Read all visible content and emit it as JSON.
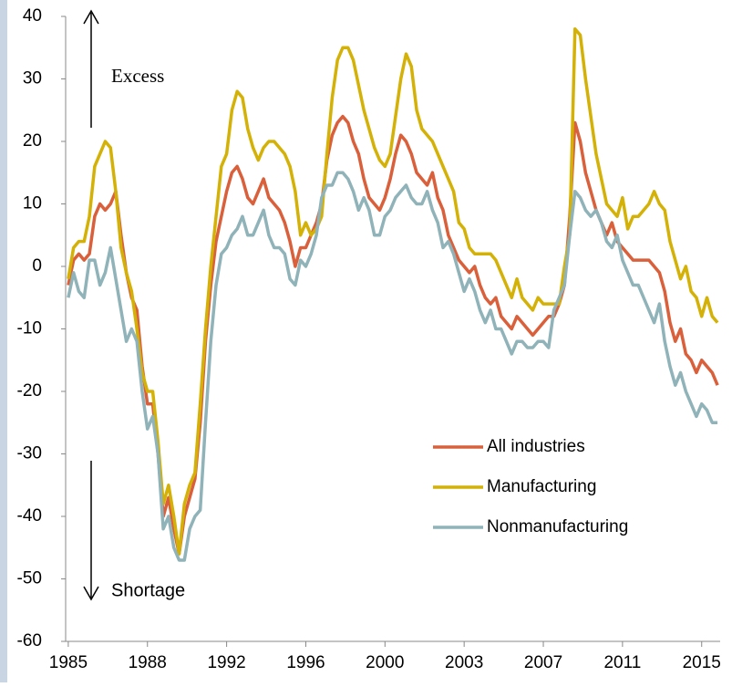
{
  "chart_data": {
    "type": "line",
    "annotations": [
      "Excess",
      "Shortage"
    ],
    "categories": [
      "1985",
      null,
      null,
      null,
      null,
      null,
      null,
      null,
      null,
      null,
      null,
      null,
      null,
      null,
      null,
      "1988",
      null,
      null,
      null,
      null,
      null,
      null,
      null,
      null,
      null,
      null,
      null,
      null,
      null,
      null,
      "1992",
      null,
      null,
      null,
      null,
      null,
      null,
      null,
      null,
      null,
      null,
      null,
      null,
      null,
      null,
      "1996",
      null,
      null,
      null,
      null,
      null,
      null,
      null,
      null,
      null,
      null,
      null,
      null,
      null,
      null,
      "2000",
      null,
      null,
      null,
      null,
      null,
      null,
      null,
      null,
      null,
      null,
      null,
      null,
      null,
      null,
      "2003",
      null,
      null,
      null,
      null,
      null,
      null,
      null,
      null,
      null,
      null,
      null,
      null,
      null,
      null,
      "2007",
      null,
      null,
      null,
      null,
      null,
      null,
      null,
      null,
      null,
      null,
      null,
      null,
      null,
      null,
      "2011",
      null,
      null,
      null,
      null,
      null,
      null,
      null,
      null,
      null,
      null,
      null,
      null,
      null,
      null,
      "2015",
      null,
      null,
      null
    ],
    "series": [
      {
        "name": "All industries",
        "color": "#d9603b",
        "values": [
          -3,
          1,
          2,
          1,
          2,
          8,
          10,
          9,
          10,
          12,
          5,
          -1,
          -5,
          -7,
          -16,
          -22,
          -22,
          -30,
          -40,
          -37,
          -42,
          -46,
          -40,
          -37,
          -34,
          -25,
          -12,
          -3,
          4,
          8,
          12,
          15,
          16,
          14,
          11,
          10,
          12,
          14,
          11,
          10,
          9,
          7,
          4,
          0,
          3,
          3,
          5,
          7,
          10,
          17,
          21,
          23,
          24,
          23,
          20,
          18,
          14,
          11,
          10,
          9,
          11,
          14,
          18,
          21,
          20,
          18,
          15,
          14,
          13,
          15,
          11,
          9,
          5,
          3,
          1,
          0,
          -1,
          0,
          -3,
          -5,
          -6,
          -5,
          -8,
          -9,
          -10,
          -8,
          -9,
          -10,
          -11,
          -10,
          -9,
          -8,
          -8,
          -6,
          -3,
          8,
          23,
          20,
          15,
          12,
          9,
          7,
          5,
          7,
          4,
          3,
          2,
          1,
          1,
          1,
          1,
          0,
          -1,
          -4,
          -9,
          -12,
          -10,
          -14,
          -15,
          -17,
          -15,
          -16,
          -17,
          -19
        ]
      },
      {
        "name": "Manufacturing",
        "color": "#d4b106",
        "values": [
          -2,
          3,
          4,
          4,
          8,
          16,
          18,
          20,
          19,
          12,
          3,
          -1,
          -4,
          -10,
          -17,
          -20,
          -20,
          -28,
          -38,
          -35,
          -40,
          -46,
          -38,
          -35,
          -33,
          -22,
          -10,
          0,
          8,
          16,
          18,
          25,
          28,
          27,
          22,
          19,
          17,
          19,
          20,
          20,
          19,
          18,
          16,
          12,
          5,
          7,
          5,
          6,
          8,
          18,
          27,
          33,
          35,
          35,
          33,
          29,
          25,
          22,
          19,
          17,
          16,
          18,
          24,
          30,
          34,
          32,
          25,
          22,
          21,
          20,
          18,
          16,
          14,
          12,
          7,
          6,
          3,
          2,
          2,
          2,
          2,
          1,
          -1,
          -3,
          -5,
          -2,
          -5,
          -6,
          -7,
          -5,
          -6,
          -6,
          -6,
          -6,
          0,
          5,
          38,
          37,
          30,
          24,
          18,
          14,
          10,
          9,
          8,
          11,
          6,
          8,
          8,
          9,
          10,
          12,
          10,
          9,
          4,
          1,
          -2,
          0,
          -4,
          -5,
          -8,
          -5,
          -8,
          -9
        ]
      },
      {
        "name": "Nonmanufacturing",
        "color": "#8fb3b8",
        "values": [
          -5,
          -1,
          -4,
          -5,
          1,
          1,
          -3,
          -1,
          3,
          -2,
          -7,
          -12,
          -10,
          -12,
          -20,
          -26,
          -24,
          -30,
          -42,
          -40,
          -45,
          -47,
          -47,
          -42,
          -40,
          -39,
          -25,
          -12,
          -3,
          2,
          3,
          5,
          6,
          8,
          5,
          5,
          7,
          9,
          5,
          3,
          3,
          2,
          -2,
          -3,
          1,
          0,
          2,
          5,
          11,
          13,
          13,
          15,
          15,
          14,
          12,
          9,
          11,
          9,
          5,
          5,
          8,
          9,
          11,
          12,
          13,
          11,
          10,
          10,
          12,
          9,
          7,
          3,
          4,
          2,
          -1,
          -4,
          -2,
          -4,
          -7,
          -9,
          -7,
          -10,
          -10,
          -12,
          -14,
          -12,
          -12,
          -13,
          -13,
          -12,
          -12,
          -13,
          -7,
          -5,
          -3,
          5,
          12,
          11,
          9,
          8,
          9,
          7,
          4,
          3,
          5,
          1,
          -1,
          -3,
          -3,
          -5,
          -7,
          -9,
          -6,
          -12,
          -16,
          -19,
          -17,
          -20,
          -22,
          -24,
          -22,
          -23,
          -25,
          -25
        ]
      }
    ],
    "ylim": [
      -60,
      40
    ],
    "yticks": [
      -60,
      -50,
      -40,
      -30,
      -20,
      -10,
      0,
      10,
      20,
      30,
      40
    ]
  }
}
